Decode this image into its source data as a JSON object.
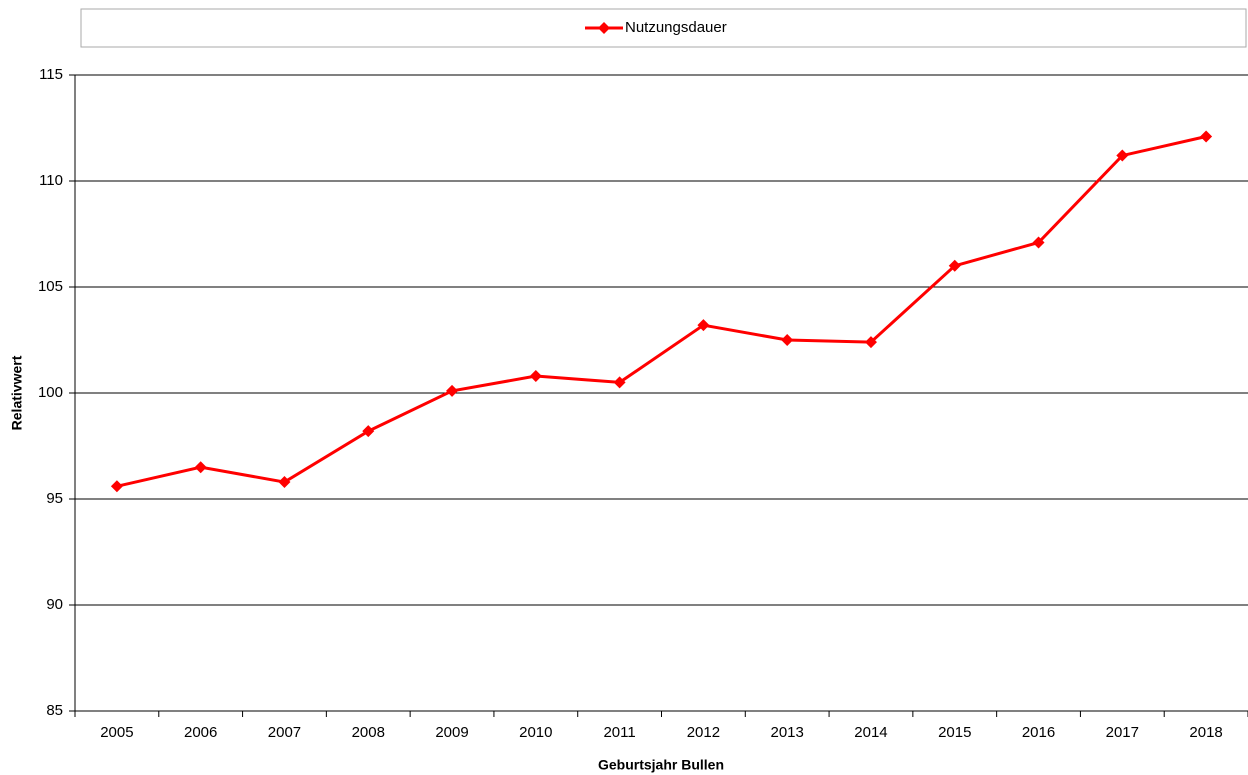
{
  "chart_data": {
    "type": "line",
    "categories": [
      "2005",
      "2006",
      "2007",
      "2008",
      "2009",
      "2010",
      "2011",
      "2012",
      "2013",
      "2014",
      "2015",
      "2016",
      "2017",
      "2018"
    ],
    "series": [
      {
        "name": "Nutzungsdauer",
        "color": "#ff0000",
        "values": [
          95.6,
          96.5,
          95.8,
          98.2,
          100.1,
          100.8,
          100.5,
          103.2,
          102.5,
          102.4,
          106.0,
          107.1,
          111.2,
          112.1
        ]
      }
    ],
    "xlabel": "Geburtsjahr Bullen",
    "ylabel": "Relativwert",
    "ylim": [
      85,
      115
    ],
    "yticks": [
      85,
      90,
      95,
      100,
      105,
      110,
      115
    ],
    "grid": true,
    "legend": "top"
  }
}
